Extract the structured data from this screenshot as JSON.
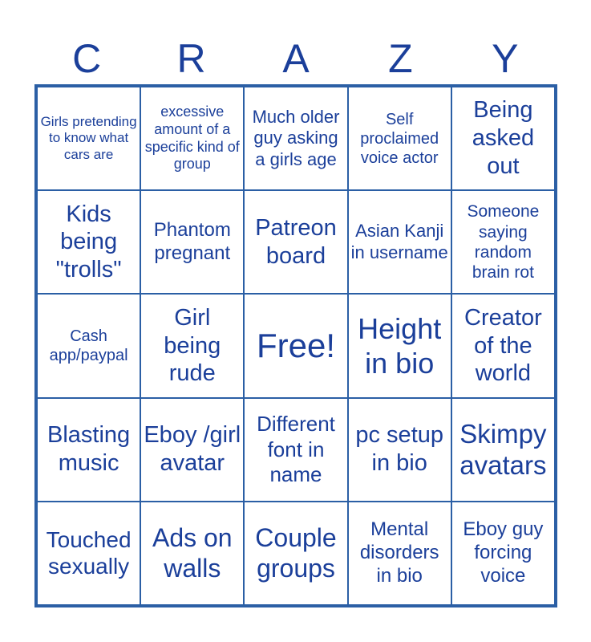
{
  "header": [
    "C",
    "R",
    "A",
    "Z",
    "Y"
  ],
  "cells": [
    "Girls pretending to know what cars are",
    "excessive amount of a specific kind of group",
    "Much older guy asking a girls age",
    "Self proclaimed voice actor",
    "Being asked out",
    "Kids being \"trolls\"",
    "Phantom pregnant",
    "Patreon board",
    "Asian Kanji in username",
    "Someone saying random brain rot",
    "Cash app/paypal",
    "Girl being rude",
    "Free!",
    "Height in bio",
    "Creator of the world",
    "Blasting music",
    "Eboy /girl avatar",
    "Different font in name",
    "pc setup in bio",
    "Skimpy avatars",
    "Touched sexually",
    "Ads on walls",
    "Couple groups",
    "Mental disorders in bio",
    "Eboy guy forcing voice"
  ],
  "colors": {
    "text": "#1b3f9a",
    "border": "#2b5fa5"
  }
}
